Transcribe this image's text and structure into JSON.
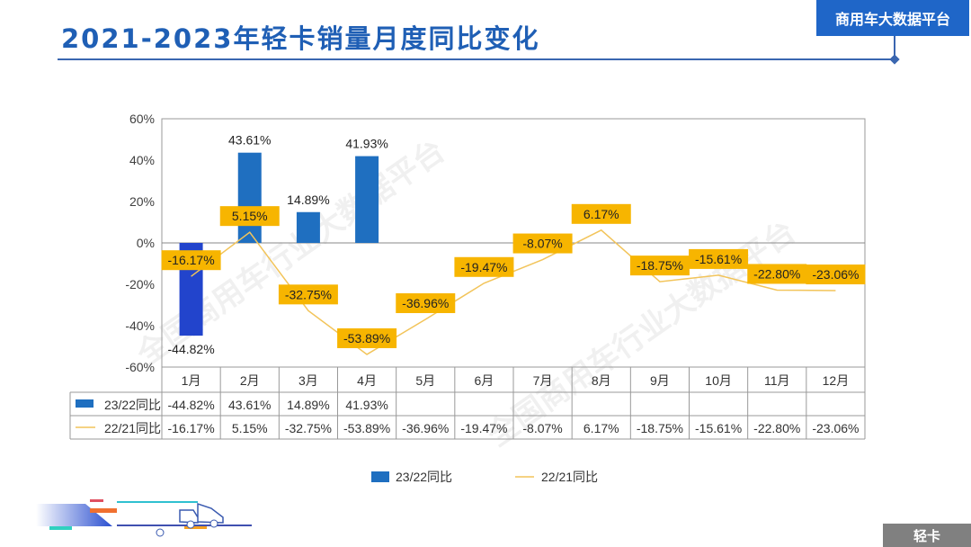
{
  "header": {
    "title": "2021-2023年轻卡销量月度同比变化",
    "badge": "商用车大数据平台"
  },
  "footer": {
    "tag": "轻卡"
  },
  "watermark": "全国商用车行业大数据平台",
  "chart_data": {
    "type": "bar+line",
    "categories": [
      "1月",
      "2月",
      "3月",
      "4月",
      "5月",
      "6月",
      "7月",
      "8月",
      "9月",
      "10月",
      "11月",
      "12月"
    ],
    "ylim": [
      -60,
      60
    ],
    "yticks": [
      60,
      40,
      20,
      0,
      -20,
      -40,
      -60
    ],
    "ytick_labels": [
      "60%",
      "40%",
      "20%",
      "0%",
      "-20%",
      "-40%",
      "-60%"
    ],
    "grid": false,
    "legend_placement": "bottom",
    "data_table": true,
    "series": [
      {
        "name": "23/22同比",
        "type": "bar",
        "color": "#1f6fc0",
        "highlight_color": "#2244cc",
        "values": [
          -44.82,
          43.61,
          14.89,
          41.93,
          null,
          null,
          null,
          null,
          null,
          null,
          null,
          null
        ],
        "labels": [
          "-44.82%",
          "43.61%",
          "14.89%",
          "41.93%",
          "",
          "",
          "",
          "",
          "",
          "",
          "",
          ""
        ]
      },
      {
        "name": "22/21同比",
        "type": "line",
        "color": "#f2c45a",
        "label_bg": "#f7b500",
        "values": [
          -16.17,
          5.15,
          -32.75,
          -53.89,
          -36.96,
          -19.47,
          -8.07,
          6.17,
          -18.75,
          -15.61,
          -22.8,
          -23.06
        ],
        "labels": [
          "-16.17%",
          "5.15%",
          "-32.75%",
          "-53.89%",
          "-36.96%",
          "-19.47%",
          "-8.07%",
          "6.17%",
          "-18.75%",
          "-15.61%",
          "-22.80%",
          "-23.06%"
        ]
      }
    ]
  }
}
